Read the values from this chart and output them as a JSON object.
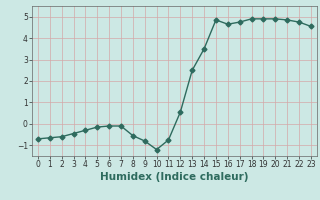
{
  "xlabel": "Humidex (Indice chaleur)",
  "x": [
    0,
    1,
    2,
    3,
    4,
    5,
    6,
    7,
    8,
    9,
    10,
    11,
    12,
    13,
    14,
    15,
    16,
    17,
    18,
    19,
    20,
    21,
    22,
    23
  ],
  "y": [
    -0.7,
    -0.65,
    -0.6,
    -0.45,
    -0.3,
    -0.15,
    -0.1,
    -0.1,
    -0.55,
    -0.8,
    -1.2,
    -0.75,
    0.55,
    2.5,
    3.5,
    4.85,
    4.65,
    4.75,
    4.9,
    4.9,
    4.9,
    4.85,
    4.75,
    4.55
  ],
  "line_color": "#2e6b5e",
  "marker": "D",
  "marker_size": 2.5,
  "bg_color": "#cce8e4",
  "grid_color": "#d4a8a8",
  "ylim": [
    -1.5,
    5.5
  ],
  "xlim": [
    -0.5,
    23.5
  ],
  "yticks": [
    -1,
    0,
    1,
    2,
    3,
    4,
    5
  ],
  "xticks": [
    0,
    1,
    2,
    3,
    4,
    5,
    6,
    7,
    8,
    9,
    10,
    11,
    12,
    13,
    14,
    15,
    16,
    17,
    18,
    19,
    20,
    21,
    22,
    23
  ],
  "tick_fontsize": 5.5,
  "xlabel_fontsize": 7.5,
  "xlabel_bold": true
}
